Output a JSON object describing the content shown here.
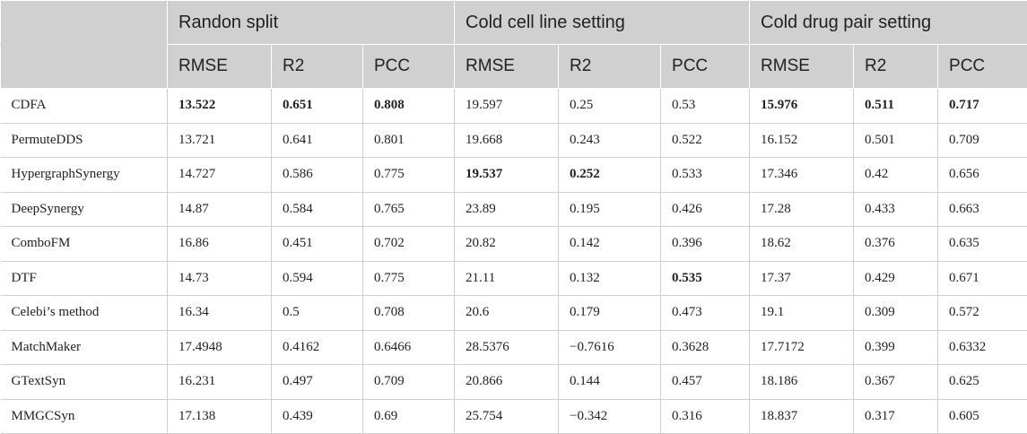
{
  "table": {
    "header": {
      "groups": [
        "Randon split",
        "Cold cell line setting",
        "Cold drug pair setting"
      ],
      "metrics": [
        "RMSE",
        "R2",
        "PCC"
      ]
    },
    "rows": [
      {
        "method": "CDFA",
        "values": [
          "13.522",
          "0.651",
          "0.808",
          "19.597",
          "0.25",
          "0.53",
          "15.976",
          "0.511",
          "0.717"
        ],
        "bold": [
          true,
          true,
          true,
          false,
          false,
          false,
          true,
          true,
          true
        ]
      },
      {
        "method": "PermuteDDS",
        "values": [
          "13.721",
          "0.641",
          "0.801",
          "19.668",
          "0.243",
          "0.522",
          "16.152",
          "0.501",
          "0.709"
        ],
        "bold": [
          false,
          false,
          false,
          false,
          false,
          false,
          false,
          false,
          false
        ]
      },
      {
        "method": "HypergraphSynergy",
        "values": [
          "14.727",
          "0.586",
          "0.775",
          "19.537",
          "0.252",
          "0.533",
          "17.346",
          "0.42",
          "0.656"
        ],
        "bold": [
          false,
          false,
          false,
          true,
          true,
          false,
          false,
          false,
          false
        ]
      },
      {
        "method": "DeepSynergy",
        "values": [
          "14.87",
          "0.584",
          "0.765",
          "23.89",
          "0.195",
          "0.426",
          "17.28",
          "0.433",
          "0.663"
        ],
        "bold": [
          false,
          false,
          false,
          false,
          false,
          false,
          false,
          false,
          false
        ]
      },
      {
        "method": "ComboFM",
        "values": [
          "16.86",
          "0.451",
          "0.702",
          "20.82",
          "0.142",
          "0.396",
          "18.62",
          "0.376",
          "0.635"
        ],
        "bold": [
          false,
          false,
          false,
          false,
          false,
          false,
          false,
          false,
          false
        ]
      },
      {
        "method": "DTF",
        "values": [
          "14.73",
          "0.594",
          "0.775",
          "21.11",
          "0.132",
          "0.535",
          "17.37",
          "0.429",
          "0.671"
        ],
        "bold": [
          false,
          false,
          false,
          false,
          false,
          true,
          false,
          false,
          false
        ]
      },
      {
        "method": "Celebi’s method",
        "values": [
          "16.34",
          "0.5",
          "0.708",
          "20.6",
          "0.179",
          "0.473",
          "19.1",
          "0.309",
          "0.572"
        ],
        "bold": [
          false,
          false,
          false,
          false,
          false,
          false,
          false,
          false,
          false
        ]
      },
      {
        "method": "MatchMaker",
        "values": [
          "17.4948",
          "0.4162",
          "0.6466",
          "28.5376",
          "−0.7616",
          "0.3628",
          "17.7172",
          "0.399",
          "0.6332"
        ],
        "bold": [
          false,
          false,
          false,
          false,
          false,
          false,
          false,
          false,
          false
        ]
      },
      {
        "method": "GTextSyn",
        "values": [
          "16.231",
          "0.497",
          "0.709",
          "20.866",
          "0.144",
          "0.457",
          "18.186",
          "0.367",
          "0.625"
        ],
        "bold": [
          false,
          false,
          false,
          false,
          false,
          false,
          false,
          false,
          false
        ]
      },
      {
        "method": "MMGCSyn",
        "values": [
          "17.138",
          "0.439",
          "0.69",
          "25.754",
          "−0.342",
          "0.316",
          "18.837",
          "0.317",
          "0.605"
        ],
        "bold": [
          false,
          false,
          false,
          false,
          false,
          false,
          false,
          false,
          false
        ]
      }
    ]
  }
}
